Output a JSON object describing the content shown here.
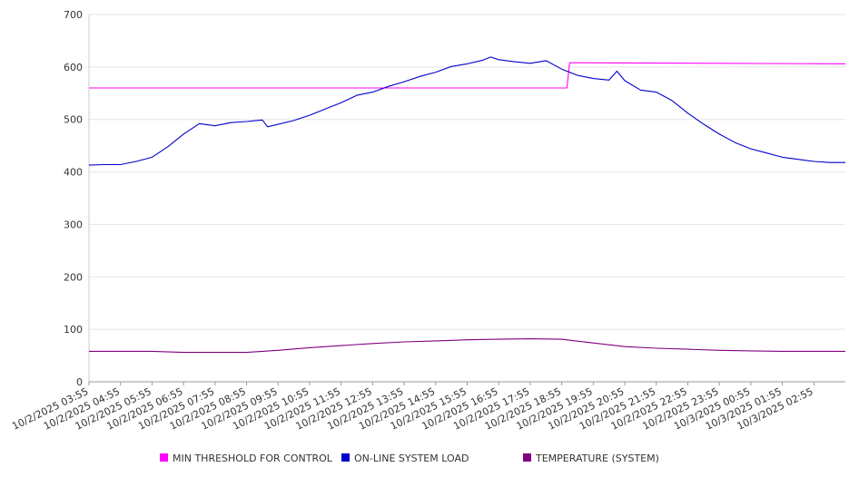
{
  "chart_data": {
    "type": "line",
    "title": "",
    "xlabel": "",
    "ylabel": "",
    "ylim": [
      0,
      700
    ],
    "yticks": [
      0,
      100,
      200,
      300,
      400,
      500,
      600,
      700
    ],
    "grid": true,
    "legend_position": "bottom",
    "x_tick_labels": [
      "10/2/2025 03:55",
      "10/2/2025 04:55",
      "10/2/2025 05:55",
      "10/2/2025 06:55",
      "10/2/2025 07:55",
      "10/2/2025 08:55",
      "10/2/2025 09:55",
      "10/2/2025 10:55",
      "10/2/2025 11:55",
      "10/2/2025 12:55",
      "10/2/2025 13:55",
      "10/2/2025 14:55",
      "10/2/2025 15:55",
      "10/2/2025 16:55",
      "10/2/2025 17:55",
      "10/2/2025 18:55",
      "10/2/2025 19:55",
      "10/2/2025 20:55",
      "10/2/2025 21:55",
      "10/2/2025 22:55",
      "10/2/2025 23:55",
      "10/3/2025 00:55",
      "10/3/2025 01:55",
      "10/3/2025 02:55"
    ],
    "x_end": "10/3/2025 03:55",
    "series": [
      {
        "name": "MIN THRESHOLD FOR CONTROL",
        "color": "#ff00ff",
        "points": [
          [
            "10/2/2025 03:55",
            560
          ],
          [
            "10/2/2025 19:05",
            560
          ],
          [
            "10/2/2025 19:10",
            608
          ],
          [
            "10/3/2025 03:55",
            606
          ]
        ]
      },
      {
        "name": "ON-LINE SYSTEM LOAD",
        "color": "#0000cc",
        "points": [
          [
            "10/2/2025 03:55",
            413
          ],
          [
            "10/2/2025 04:25",
            414
          ],
          [
            "10/2/2025 04:55",
            414
          ],
          [
            "10/2/2025 05:25",
            420
          ],
          [
            "10/2/2025 05:55",
            428
          ],
          [
            "10/2/2025 06:25",
            448
          ],
          [
            "10/2/2025 06:55",
            472
          ],
          [
            "10/2/2025 07:25",
            492
          ],
          [
            "10/2/2025 07:55",
            488
          ],
          [
            "10/2/2025 08:25",
            494
          ],
          [
            "10/2/2025 08:55",
            496
          ],
          [
            "10/2/2025 09:25",
            499
          ],
          [
            "10/2/2025 09:35",
            486
          ],
          [
            "10/2/2025 10:25",
            498
          ],
          [
            "10/2/2025 10:55",
            508
          ],
          [
            "10/2/2025 11:25",
            520
          ],
          [
            "10/2/2025 11:55",
            532
          ],
          [
            "10/2/2025 12:25",
            546
          ],
          [
            "10/2/2025 12:55",
            552
          ],
          [
            "10/2/2025 13:25",
            563
          ],
          [
            "10/2/2025 13:55",
            572
          ],
          [
            "10/2/2025 14:25",
            582
          ],
          [
            "10/2/2025 14:55",
            590
          ],
          [
            "10/2/2025 15:25",
            601
          ],
          [
            "10/2/2025 15:55",
            606
          ],
          [
            "10/2/2025 16:25",
            613
          ],
          [
            "10/2/2025 16:40",
            619
          ],
          [
            "10/2/2025 16:55",
            614
          ],
          [
            "10/2/2025 17:25",
            610
          ],
          [
            "10/2/2025 17:55",
            607
          ],
          [
            "10/2/2025 18:25",
            612
          ],
          [
            "10/2/2025 18:55",
            596
          ],
          [
            "10/2/2025 19:25",
            584
          ],
          [
            "10/2/2025 19:55",
            578
          ],
          [
            "10/2/2025 20:25",
            575
          ],
          [
            "10/2/2025 20:40",
            592
          ],
          [
            "10/2/2025 20:55",
            574
          ],
          [
            "10/2/2025 21:25",
            556
          ],
          [
            "10/2/2025 21:55",
            552
          ],
          [
            "10/2/2025 22:25",
            536
          ],
          [
            "10/2/2025 22:55",
            512
          ],
          [
            "10/2/2025 23:25",
            491
          ],
          [
            "10/2/2025 23:55",
            472
          ],
          [
            "10/3/2025 00:25",
            456
          ],
          [
            "10/3/2025 00:55",
            444
          ],
          [
            "10/3/2025 01:25",
            436
          ],
          [
            "10/3/2025 01:55",
            428
          ],
          [
            "10/3/2025 02:25",
            424
          ],
          [
            "10/3/2025 02:55",
            420
          ],
          [
            "10/3/2025 03:25",
            418
          ],
          [
            "10/3/2025 03:55",
            418
          ]
        ]
      },
      {
        "name": "TEMPERATURE (SYSTEM)",
        "color": "#800080",
        "points": [
          [
            "10/2/2025 03:55",
            58
          ],
          [
            "10/2/2025 05:55",
            58
          ],
          [
            "10/2/2025 06:55",
            56
          ],
          [
            "10/2/2025 08:55",
            56
          ],
          [
            "10/2/2025 09:55",
            60
          ],
          [
            "10/2/2025 10:55",
            65
          ],
          [
            "10/2/2025 11:55",
            69
          ],
          [
            "10/2/2025 12:55",
            73
          ],
          [
            "10/2/2025 13:55",
            76
          ],
          [
            "10/2/2025 14:55",
            78
          ],
          [
            "10/2/2025 15:55",
            80
          ],
          [
            "10/2/2025 16:55",
            81
          ],
          [
            "10/2/2025 17:55",
            82
          ],
          [
            "10/2/2025 18:55",
            81
          ],
          [
            "10/2/2025 19:55",
            74
          ],
          [
            "10/2/2025 20:55",
            67
          ],
          [
            "10/2/2025 21:55",
            64
          ],
          [
            "10/2/2025 22:55",
            62
          ],
          [
            "10/2/2025 23:55",
            60
          ],
          [
            "10/3/2025 00:55",
            59
          ],
          [
            "10/3/2025 01:55",
            58
          ],
          [
            "10/3/2025 02:55",
            58
          ],
          [
            "10/3/2025 03:55",
            58
          ]
        ]
      }
    ]
  }
}
